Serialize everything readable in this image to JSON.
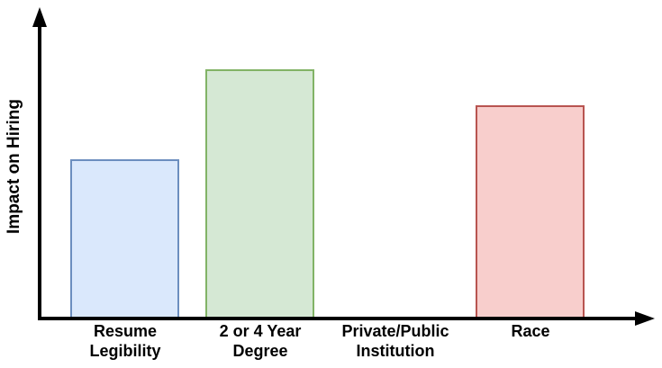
{
  "chart_data": {
    "type": "bar",
    "title": "",
    "xlabel": "",
    "ylabel": "Impact on Hiring",
    "categories": [
      "Resume Legibility",
      "2 or 4 Year Degree",
      "Private/Public Institution",
      "Race"
    ],
    "category_lines": [
      [
        "Resume",
        "Legibility"
      ],
      [
        "2 or 4 Year",
        "Degree"
      ],
      [
        "Private/Public",
        "Institution"
      ],
      [
        "Race"
      ]
    ],
    "values": [
      177,
      277,
      0,
      237
    ],
    "ylim": [
      0,
      345
    ],
    "grid": false,
    "legend": "none",
    "axis_ticks": "none",
    "axis_color": "#000000",
    "bar_fills": [
      "#dae8fc",
      "#d5e8d4",
      null,
      "#f8cecc"
    ],
    "bar_strokes": [
      "#6c8ebf",
      "#82b366",
      null,
      "#b85450"
    ]
  }
}
